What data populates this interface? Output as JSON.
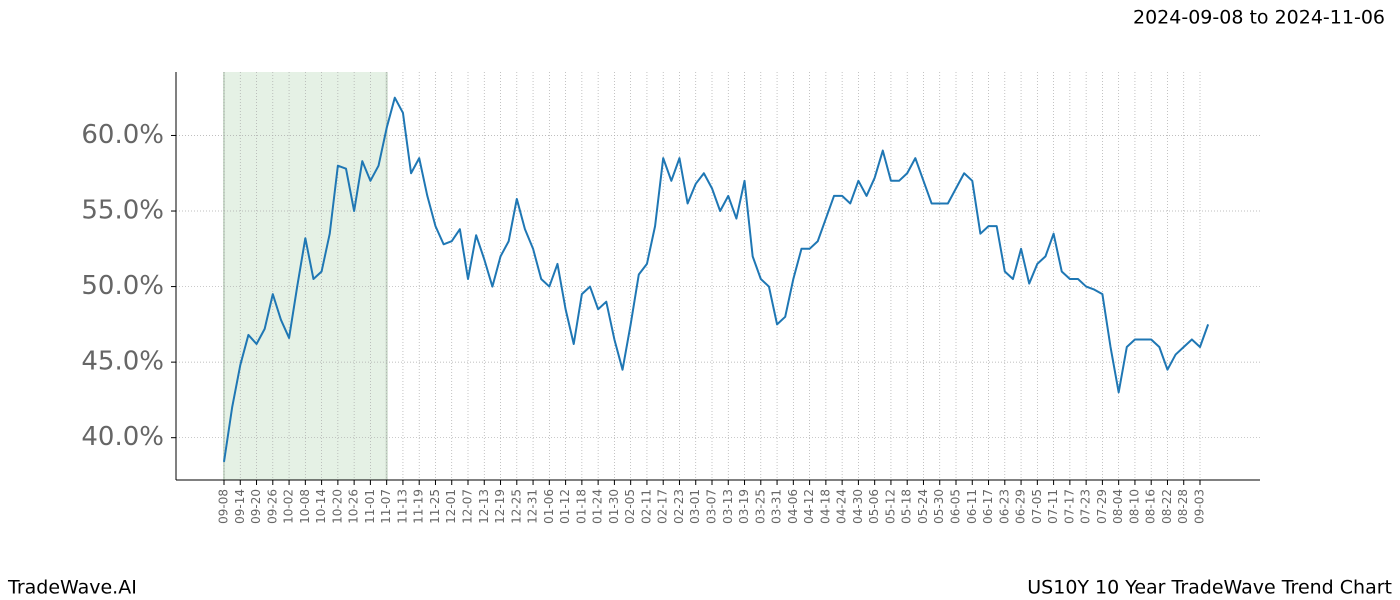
{
  "chart_data": {
    "type": "line",
    "date_range": "2024-09-08 to 2024-11-06",
    "brand": "TradeWave.AI",
    "title": "US10Y 10 Year TradeWave Trend Chart",
    "categories": [
      "09-08",
      null,
      "09-14",
      null,
      "09-20",
      null,
      "09-26",
      null,
      "10-02",
      null,
      "10-08",
      null,
      "10-14",
      null,
      "10-20",
      null,
      "10-26",
      null,
      "11-01",
      null,
      "11-07",
      null,
      "11-13",
      null,
      "11-19",
      null,
      "11-25",
      null,
      "12-01",
      null,
      "12-07",
      null,
      "12-13",
      null,
      "12-19",
      null,
      "12-25",
      null,
      "12-31",
      null,
      "01-06",
      null,
      "01-12",
      null,
      "01-18",
      null,
      "01-24",
      null,
      "01-30",
      null,
      "02-05",
      null,
      "02-11",
      null,
      "02-17",
      null,
      "02-23",
      null,
      "03-01",
      null,
      "03-07",
      null,
      "03-13",
      null,
      "03-19",
      null,
      "03-25",
      null,
      "03-31",
      null,
      "04-06",
      null,
      "04-12",
      null,
      "04-18",
      null,
      "04-24",
      null,
      "04-30",
      null,
      "05-06",
      null,
      "05-12",
      null,
      "05-18",
      null,
      "05-24",
      null,
      "05-30",
      null,
      "06-05",
      null,
      "06-11",
      null,
      "06-17",
      null,
      "06-23",
      null,
      "06-29",
      null,
      "07-05",
      null,
      "07-11",
      null,
      "07-17",
      null,
      "07-23",
      null,
      "07-29",
      null,
      "08-04",
      null,
      "08-10",
      null,
      "08-16",
      null,
      "08-22",
      null,
      "08-28",
      null,
      "09-03",
      null
    ],
    "series": [
      {
        "color": "#1f77b4",
        "values": [
          38.4,
          42.0,
          44.8,
          46.8,
          46.2,
          47.2,
          49.5,
          47.8,
          46.6,
          50.0,
          53.2,
          50.5,
          51.0,
          53.5,
          58.0,
          57.8,
          55.0,
          58.3,
          57.0,
          58.0,
          60.5,
          62.5,
          61.5,
          57.5,
          58.5,
          56.0,
          54.0,
          52.8,
          53.0,
          53.8,
          50.5,
          53.4,
          51.8,
          50.0,
          52.0,
          53.0,
          55.8,
          53.8,
          52.5,
          50.5,
          50.0,
          51.5,
          48.5,
          46.2,
          49.5,
          50.0,
          48.5,
          49.0,
          46.5,
          44.5,
          47.5,
          50.8,
          51.5,
          54.0,
          58.5,
          57.0,
          58.5,
          55.5,
          56.8,
          57.5,
          56.5,
          55.0,
          56.0,
          54.5,
          57.0,
          52.0,
          50.5,
          50.0,
          47.5,
          48.0,
          50.5,
          52.5,
          52.5,
          53.0,
          54.5,
          56.0,
          56.0,
          55.5,
          57.0,
          56.0,
          57.2,
          59.0,
          57.0,
          57.0,
          57.5,
          58.5,
          57.0,
          55.5,
          55.5,
          55.5,
          56.5,
          57.5,
          57.0,
          53.5,
          54.0,
          54.0,
          51.0,
          50.5,
          52.5,
          50.2,
          51.5,
          52.0,
          53.5,
          51.0,
          50.5,
          50.5,
          50.0,
          49.8,
          49.5,
          46.0,
          43.0,
          46.0,
          46.5,
          46.5,
          46.5,
          46.0,
          44.5,
          45.5,
          46.0,
          46.5,
          46.0,
          47.5
        ]
      }
    ],
    "highlight": [
      "09-08",
      "11-07"
    ],
    "highlight_color": "#e5f1e5",
    "ylim": [
      37.2,
      64.2
    ],
    "yticks": [
      {
        "value": 40,
        "label": "40.0%"
      },
      {
        "value": 45,
        "label": "45.0%"
      },
      {
        "value": 50,
        "label": "50.0%"
      },
      {
        "value": 55,
        "label": "55.0%"
      },
      {
        "value": 60,
        "label": "60.0%"
      }
    ],
    "grid": true
  }
}
